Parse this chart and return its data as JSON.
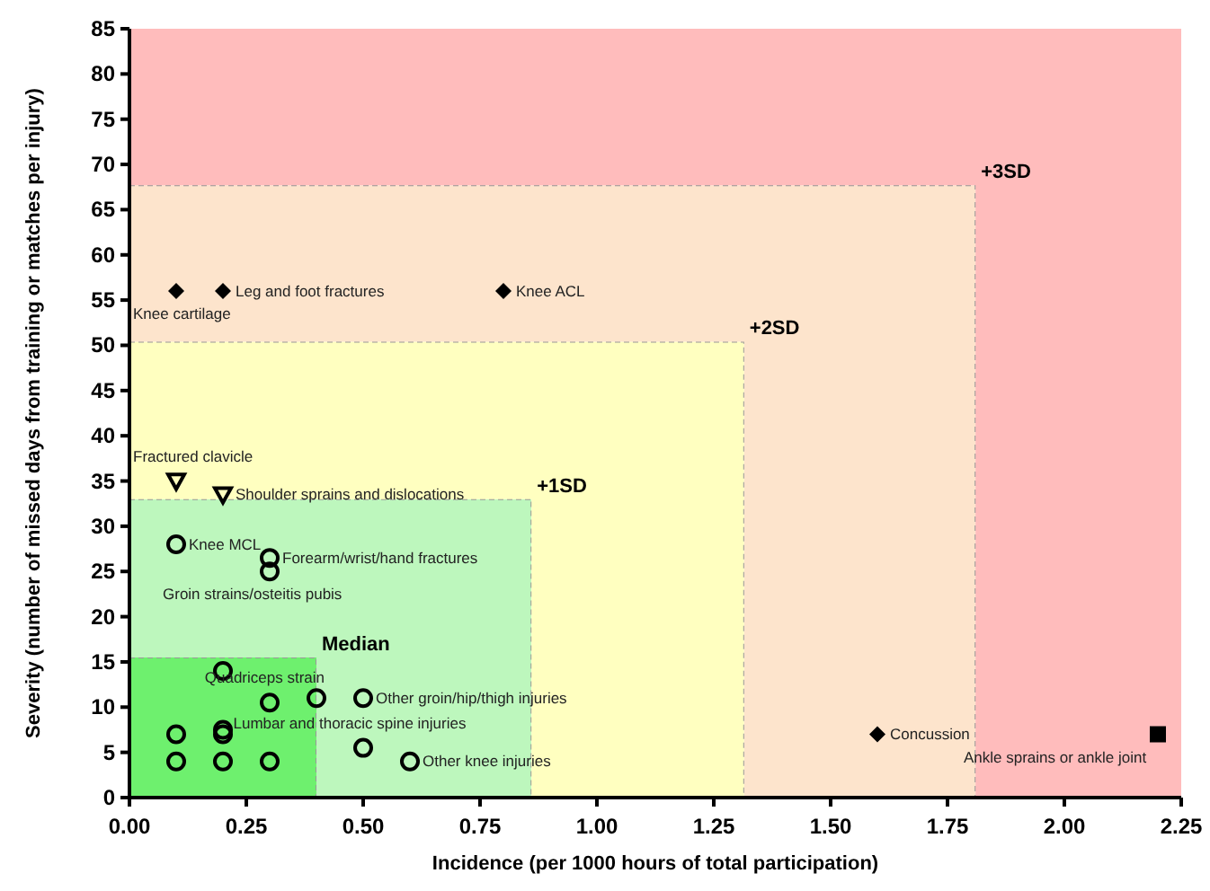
{
  "chart_data": {
    "type": "scatter",
    "xlabel": "Incidence (per 1000 hours of total participation)",
    "ylabel": "Severity (number of missed days from training or matches per injury)",
    "xlim": [
      0,
      2.25
    ],
    "ylim": [
      0,
      85
    ],
    "xticks": [
      {
        "value": 0,
        "label": "0.00"
      },
      {
        "value": 0.25,
        "label": "0.25"
      },
      {
        "value": 0.5,
        "label": "0.50"
      },
      {
        "value": 0.75,
        "label": "0.75"
      },
      {
        "value": 1,
        "label": "1.00"
      },
      {
        "value": 1.25,
        "label": "1.25"
      },
      {
        "value": 1.5,
        "label": "1.50"
      },
      {
        "value": 1.75,
        "label": "1.75"
      },
      {
        "value": 2,
        "label": "2.00"
      },
      {
        "value": 2.25,
        "label": "2.25"
      }
    ],
    "yticks": [
      0,
      5,
      10,
      15,
      20,
      25,
      30,
      35,
      40,
      45,
      50,
      55,
      60,
      65,
      70,
      75,
      80,
      85
    ],
    "grid": false,
    "legend": false,
    "stacked": true,
    "series": [
      {
        "type": "area",
        "name": "Median",
        "color": "#6ef06e",
        "line_style": "dashed",
        "x": [
          0,
          0.4,
          0.4,
          0.86,
          0.86,
          1.315,
          1.315,
          1.81,
          1.81,
          2.25
        ],
        "values": [
          15.5,
          15.5,
          0,
          0,
          0,
          0,
          0,
          0,
          0,
          0
        ]
      },
      {
        "type": "area",
        "name": "+1SD",
        "color": "#bdf7bd",
        "line_style": "dashed",
        "x": [
          0,
          0.4,
          0.4,
          0.86,
          0.86,
          1.315,
          1.315,
          1.81,
          1.81,
          2.25
        ],
        "values": [
          17.5,
          17.5,
          33,
          33,
          0,
          0,
          0,
          0,
          0,
          0
        ]
      },
      {
        "type": "area",
        "name": "+2SD",
        "color": "#ffffc0",
        "line_style": "dashed",
        "x": [
          0,
          0.4,
          0.4,
          0.86,
          0.86,
          1.315,
          1.315,
          1.81,
          1.81,
          2.25
        ],
        "values": [
          17.4,
          17.4,
          17.4,
          17.4,
          50.4,
          50.4,
          0,
          0,
          0,
          0
        ]
      },
      {
        "type": "area",
        "name": "+3SD",
        "color": "#fde4cc",
        "line_style": "dashed",
        "x": [
          0,
          0.4,
          0.4,
          0.86,
          0.86,
          1.315,
          1.315,
          1.81,
          1.81,
          2.25
        ],
        "values": [
          17.3,
          17.3,
          17.3,
          17.3,
          17.3,
          17.3,
          67.7,
          67.7,
          0,
          0
        ]
      },
      {
        "type": "area",
        "color": "#ffbcbc",
        "x": [
          0,
          0.4,
          0.4,
          0.86,
          0.86,
          1.315,
          1.315,
          1.81,
          1.81,
          2.25
        ],
        "values": [
          17.3,
          17.3,
          17.3,
          17.3,
          17.3,
          17.3,
          17.3,
          17.3,
          85,
          85
        ]
      },
      {
        "marker": "circle",
        "color": "#000000",
        "x": [
          0.1,
          0.3,
          0.3,
          0.2,
          0.3,
          0.4,
          0.5,
          0.5,
          0.6,
          0.1,
          0.2,
          0.2,
          0.1,
          0.2,
          0.3
        ],
        "values": [
          28,
          26.5,
          25,
          14,
          10.5,
          11,
          11,
          5.5,
          4,
          7,
          7.5,
          7,
          4,
          4,
          4
        ]
      },
      {
        "marker": "triangle",
        "color": "#000000",
        "x": [
          0.1,
          0.2
        ],
        "values": [
          35,
          33.5
        ]
      },
      {
        "marker": "diamond",
        "color": "#000000",
        "x": [
          0.1,
          0.2,
          0.8,
          1.6
        ],
        "values": [
          56,
          56,
          56,
          7
        ]
      },
      {
        "marker": "square",
        "color": "#000000",
        "x": [
          2.2
        ],
        "values": [
          7
        ]
      }
    ],
    "annotations": [
      {
        "text": "Knee MCL",
        "x": 0.1,
        "y": 28
      },
      {
        "text": "Forearm/wrist/hand fractures",
        "x": 0.3,
        "y": 26.5
      },
      {
        "text": "Groin strains/osteitis pubis",
        "x": 0.3,
        "y": 25
      },
      {
        "text": "Quadriceps strain",
        "x": 0.3,
        "y": 10.5
      },
      {
        "text": "Other groin/hip/thigh injuries",
        "x": 0.5,
        "y": 11
      },
      {
        "text": "Lumbar and thoracic spine injuries",
        "x": 0.5,
        "y": 5.5
      },
      {
        "text": "Other knee injuries",
        "x": 0.6,
        "y": 4
      },
      {
        "text": "Fractured clavicle",
        "x": 0.1,
        "y": 35
      },
      {
        "text": "Shoulder sprains and dislocations",
        "x": 0.2,
        "y": 33.5
      },
      {
        "text": "Knee cartilage",
        "x": 0.1,
        "y": 56
      },
      {
        "text": "Leg and foot fractures",
        "x": 0.2,
        "y": 56
      },
      {
        "text": "Knee ACL",
        "x": 0.8,
        "y": 56
      },
      {
        "text": "Concussion",
        "x": 1.6,
        "y": 7
      },
      {
        "text": "Ankle sprains or ankle joint",
        "x": 2.2,
        "y": 7
      }
    ]
  }
}
